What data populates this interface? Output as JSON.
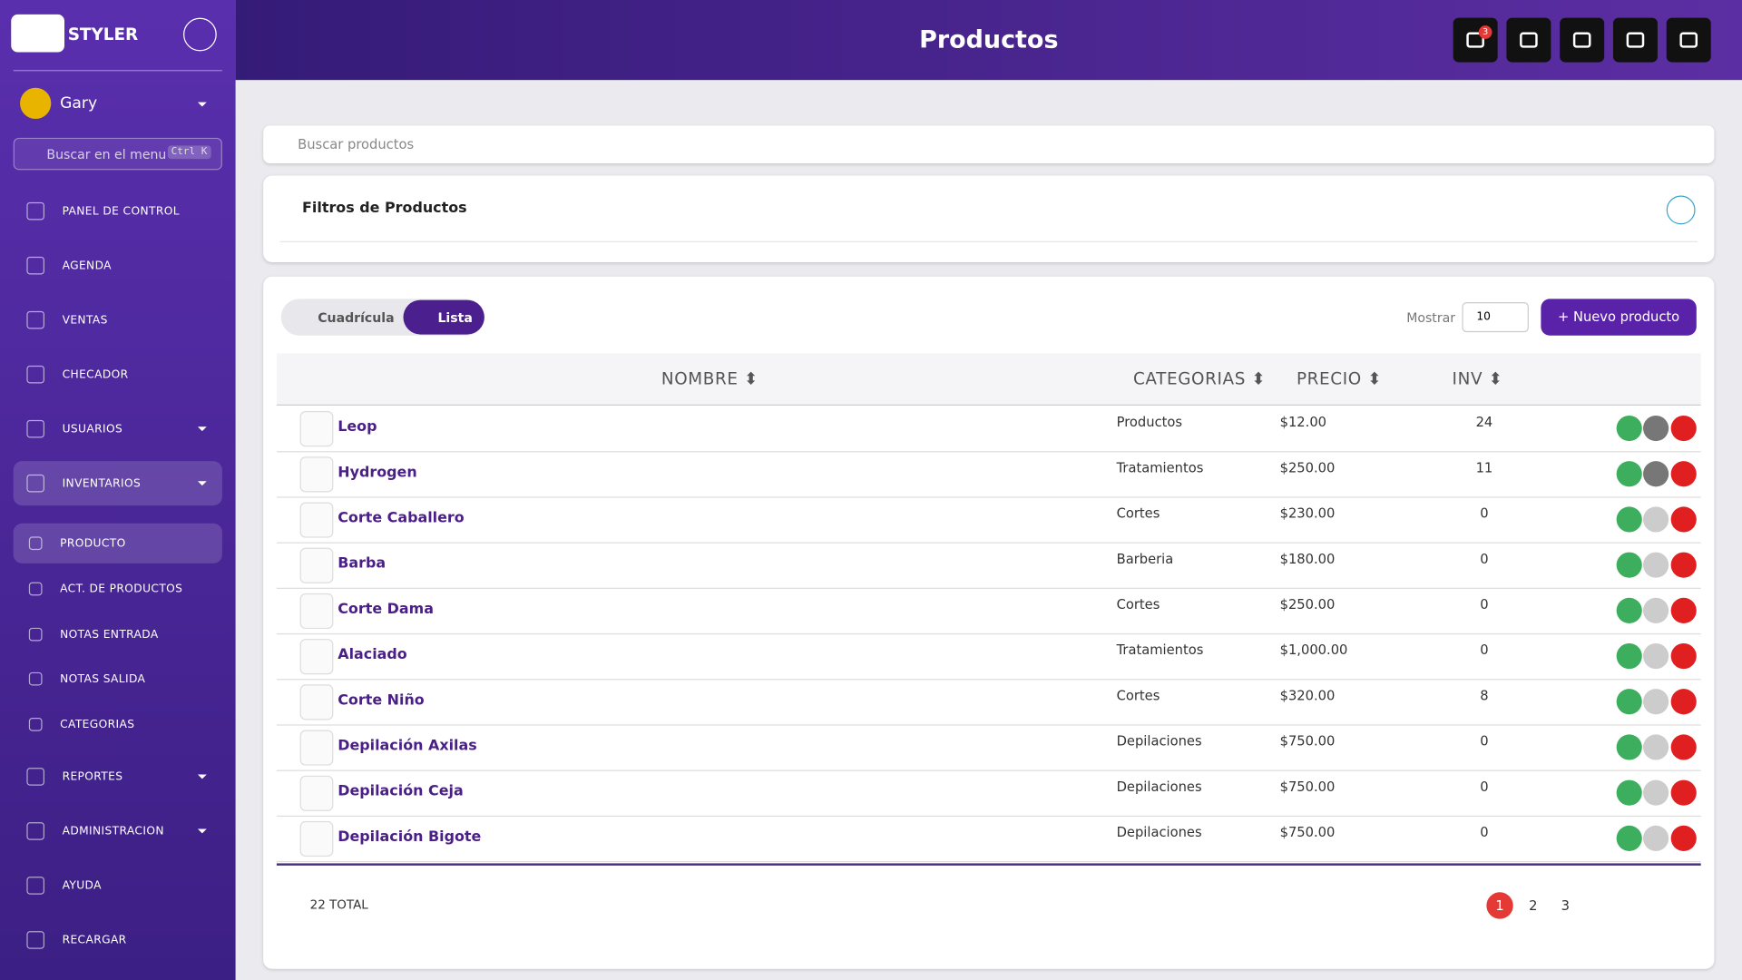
{
  "sidebar": {
    "brand": "STYLER",
    "user": "Gary",
    "search_placeholder": "Buscar en el menu",
    "shortcut": "Ctrl K",
    "menu": [
      {
        "label": "PANEL DE CONTROL"
      },
      {
        "label": "AGENDA"
      },
      {
        "label": "VENTAS"
      },
      {
        "label": "CHECADOR"
      },
      {
        "label": "USUARIOS",
        "caret": true
      },
      {
        "label": "INVENTARIOS",
        "caret": true,
        "active": true
      },
      {
        "label": "PRODUCTO",
        "sub": true,
        "active": true
      },
      {
        "label": "ACT. DE PRODUCTOS",
        "sub": true
      },
      {
        "label": "NOTAS ENTRADA",
        "sub": true
      },
      {
        "label": "NOTAS SALIDA",
        "sub": true
      },
      {
        "label": "CATEGORIAS",
        "sub": true
      },
      {
        "label": "REPORTES",
        "caret": true
      },
      {
        "label": "ADMINISTRACION",
        "caret": true
      },
      {
        "label": "AYUDA"
      },
      {
        "label": "RECARGAR"
      }
    ]
  },
  "header": {
    "title": "Productos",
    "notifications": 3
  },
  "search_placeholder": "Buscar productos",
  "filters": {
    "title": "Filtros de Productos"
  },
  "view": {
    "grid": "Cuadrícula",
    "list": "Lista"
  },
  "show_label": "Mostrar",
  "show_value": "10",
  "new_button": "+ Nuevo producto",
  "table": {
    "headers": [
      "NOMBRE ⬍",
      "CATEGORIAS ⬍",
      "PRECIO ⬍",
      "INV ⬍"
    ],
    "rows": [
      [
        "Leop",
        "Productos",
        "$12.00",
        24
      ],
      [
        "Hydrogen",
        "Tratamientos",
        "$250.00",
        11
      ],
      [
        "Corte Caballero",
        "Cortes",
        "$230.00",
        0
      ],
      [
        "Barba",
        "Barberia",
        "$180.00",
        0
      ],
      [
        "Corte Dama",
        "Cortes",
        "$250.00",
        0
      ],
      [
        "Alaciado",
        "Tratamientos",
        "$1,000.00",
        0
      ],
      [
        "Corte Niño",
        "Cortes",
        "$320.00",
        8
      ],
      [
        "Depilación Axilas",
        "Depilaciones",
        "$750.00",
        0
      ],
      [
        "Depilación Ceja",
        "Depilaciones",
        "$750.00",
        0
      ],
      [
        "Depilación Bigote",
        "Depilaciones",
        "$750.00",
        0
      ]
    ]
  },
  "pagination": {
    "total": "22 TOTAL",
    "pages": [
      "1",
      "2",
      "3"
    ],
    "current": 0
  }
}
